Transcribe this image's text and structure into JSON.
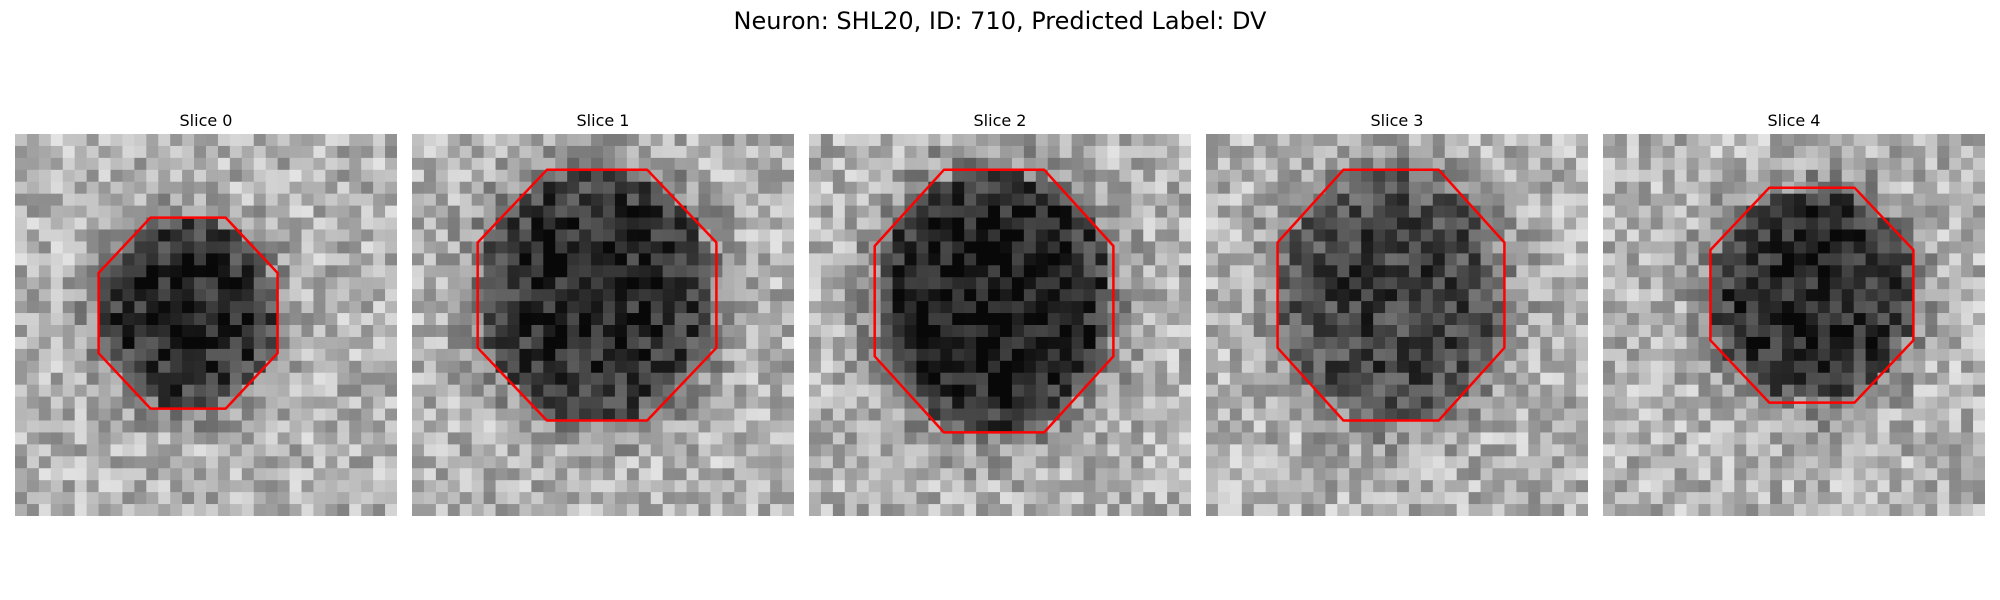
{
  "figure": {
    "title": "Neuron: SHL20, ID: 710, Predicted Label: DV"
  },
  "colors": {
    "contour": "#ff0000",
    "background": "#ffffff"
  },
  "slices": [
    {
      "title": "Slice 0"
    },
    {
      "title": "Slice 1"
    },
    {
      "title": "Slice 2"
    },
    {
      "title": "Slice 3"
    },
    {
      "title": "Slice 4"
    }
  ]
}
